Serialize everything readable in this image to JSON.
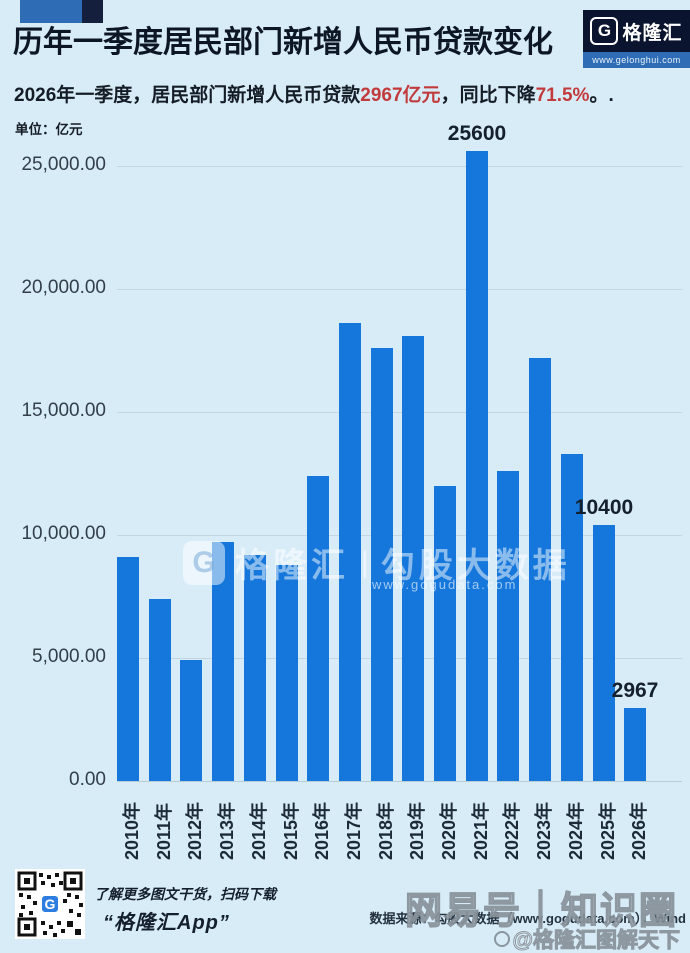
{
  "header": {
    "title": "历年一季度居民部门新增人民币贷款变化",
    "logo": {
      "letter": "G",
      "brand": "格隆汇",
      "url": "www.gelonghui.com"
    }
  },
  "subtitle_segments": [
    {
      "text": "2026年一季度，居民部门新增人民币贷款",
      "red": false
    },
    {
      "text": "2967亿元",
      "red": true
    },
    {
      "text": "，同比下降",
      "red": false
    },
    {
      "text": "71.5%",
      "red": true
    },
    {
      "text": "。.",
      "red": false
    }
  ],
  "chart_data": {
    "type": "bar",
    "title": "历年一季度居民部门新增人民币贷款变化",
    "unit_label": "单位：亿元",
    "xlabel": "",
    "ylabel": "亿元",
    "ylim": [
      0,
      26000
    ],
    "grid": true,
    "bar_color": "#1577db",
    "categories": [
      "2010年",
      "2011年",
      "2012年",
      "2013年",
      "2014年",
      "2015年",
      "2016年",
      "2017年",
      "2018年",
      "2019年",
      "2020年",
      "2021年",
      "2022年",
      "2023年",
      "2024年",
      "2025年",
      "2026年"
    ],
    "values": [
      9100,
      7400,
      4900,
      9700,
      9200,
      8800,
      12400,
      18600,
      17600,
      18100,
      12000,
      25600,
      12600,
      17200,
      13300,
      10400,
      2967
    ],
    "yticks": [
      {
        "value": 0,
        "label": "0.00"
      },
      {
        "value": 5000,
        "label": "5,000.00"
      },
      {
        "value": 10000,
        "label": "10,000.00"
      },
      {
        "value": 15000,
        "label": "15,000.00"
      },
      {
        "value": 20000,
        "label": "20,000.00"
      },
      {
        "value": 25000,
        "label": "25,000.00"
      }
    ],
    "annotations": [
      {
        "index": 11,
        "text": "25600"
      },
      {
        "index": 15,
        "text": "10400"
      },
      {
        "index": 16,
        "text": "2967"
      }
    ]
  },
  "watermark": {
    "logo_letter": "G",
    "brand": "格隆汇",
    "divider": "|",
    "name": "勾股大数据",
    "url": "www.gogudata.com"
  },
  "footer": {
    "hint": "了解更多图文干货，扫码下载",
    "app_name": "“格隆汇App”",
    "source": "数据来源：勾股大数据（www.gogudata.com），Wind"
  },
  "overlay": {
    "big": "网易号｜知识圈",
    "credit": "@格隆汇图解天下"
  },
  "colors": {
    "background": "#d8ecf8",
    "bar": "#1577db",
    "accent_red": "#c23b3c",
    "grid": "#c3d5e1",
    "header_navy": "#0a142e",
    "header_blue": "#2e6db5"
  }
}
